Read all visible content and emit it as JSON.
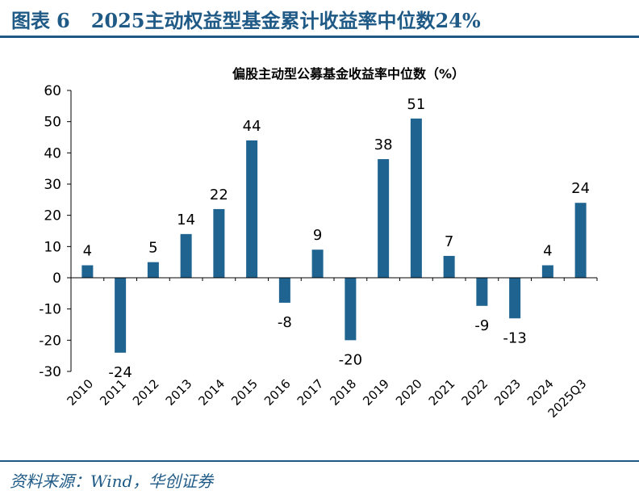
{
  "header": {
    "figure_label": "图表",
    "figure_number": "6",
    "title": "2025主动权益型基金累计收益率中位数24%"
  },
  "source_note": "资料来源：Wind，华创证券",
  "colors": {
    "accent": "#1f5a86",
    "bar": "#1f6390"
  },
  "chart_data": {
    "type": "bar",
    "title": "偏股主动型公募基金收益率中位数（%）",
    "categories": [
      "2010",
      "2011",
      "2012",
      "2013",
      "2014",
      "2015",
      "2016",
      "2017",
      "2018",
      "2019",
      "2020",
      "2021",
      "2022",
      "2023",
      "2024",
      "2025Q3"
    ],
    "values": [
      4,
      -24,
      5,
      14,
      22,
      44,
      -8,
      9,
      -20,
      38,
      51,
      7,
      -9,
      -13,
      4,
      24
    ],
    "data_labels": [
      "4",
      "-24",
      "5",
      "14",
      "22",
      "44",
      "-8",
      "9",
      "-20",
      "38",
      "51",
      "7",
      "-9",
      "-13",
      "4",
      "24"
    ],
    "ylim": [
      -30,
      60
    ],
    "yticks": [
      -30,
      -20,
      -10,
      0,
      10,
      20,
      30,
      40,
      50,
      60
    ],
    "xlabel": "",
    "ylabel": "",
    "grid": false
  }
}
